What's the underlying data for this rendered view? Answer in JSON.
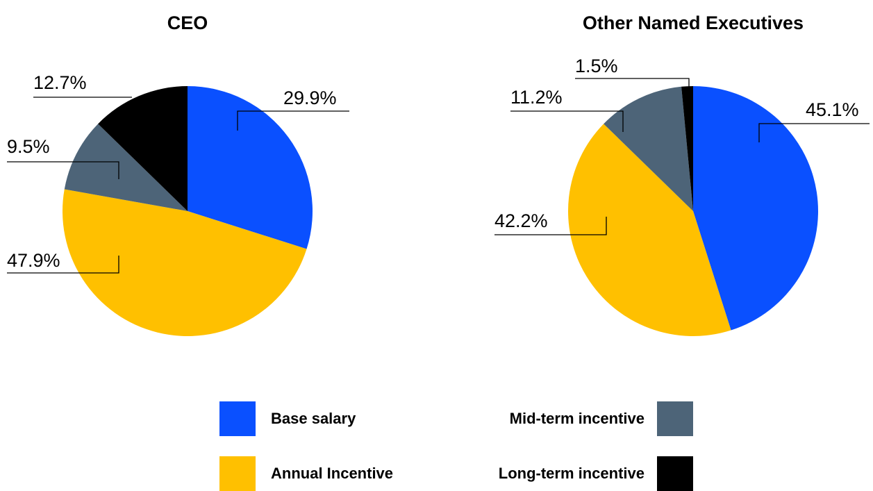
{
  "legend": [
    {
      "name": "Base salary",
      "color": "#0a50ff"
    },
    {
      "name": "Annual Incentive",
      "color": "#ffc000"
    },
    {
      "name": "Mid-term incentive",
      "color": "#4d6478"
    },
    {
      "name": "Long-term incentive",
      "color": "#000000"
    }
  ],
  "chart_data": [
    {
      "type": "pie",
      "title": "CEO",
      "values": [
        29.9,
        47.9,
        9.5,
        12.7
      ],
      "value_labels": [
        "29.9%",
        "47.9%",
        "9.5%",
        "12.7%"
      ]
    },
    {
      "type": "pie",
      "title": "Other Named Executives",
      "values": [
        45.1,
        42.2,
        11.2,
        1.5
      ],
      "value_labels": [
        "45.1%",
        "42.2%",
        "11.2%",
        "1.5%"
      ]
    }
  ]
}
